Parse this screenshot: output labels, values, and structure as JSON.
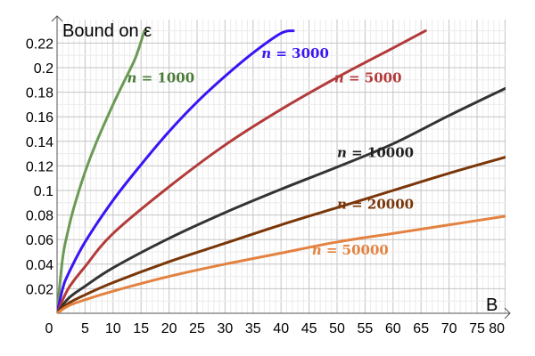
{
  "chart_data": {
    "type": "line",
    "title": "",
    "xlabel": "B",
    "ylabel": "Bound on ε",
    "xlim": [
      0,
      80
    ],
    "ylim": [
      0,
      0.23
    ],
    "grid": true,
    "x_ticks": [
      "0",
      "5",
      "10",
      "15",
      "20",
      "25",
      "30",
      "35",
      "40",
      "45",
      "50",
      "55",
      "60",
      "65",
      "70",
      "75",
      "80"
    ],
    "y_ticks": [
      "0.02",
      "0.04",
      "0.06",
      "0.08",
      "0.1",
      "0.12",
      "0.14",
      "0.16",
      "0.18",
      "0.2",
      "0.22"
    ],
    "series": [
      {
        "name": "n = 1000",
        "color": "#6b9a55",
        "x": [
          0,
          1,
          2,
          3,
          5,
          7,
          10,
          12,
          14,
          15.6
        ],
        "y": [
          0,
          0.045,
          0.068,
          0.086,
          0.115,
          0.139,
          0.17,
          0.189,
          0.208,
          0.23
        ]
      },
      {
        "name": "n = 3000",
        "color": "#3b14f5",
        "x": [
          0,
          1,
          2,
          5,
          10,
          15,
          20,
          25,
          30,
          35,
          40,
          42.2
        ],
        "y": [
          0,
          0.02,
          0.032,
          0.058,
          0.092,
          0.121,
          0.148,
          0.172,
          0.193,
          0.212,
          0.228,
          0.23
        ]
      },
      {
        "name": "n = 5000",
        "color": "#b33a3a",
        "x": [
          0,
          2,
          5,
          10,
          20,
          30,
          40,
          50,
          60,
          65.8
        ],
        "y": [
          0,
          0.02,
          0.038,
          0.065,
          0.103,
          0.137,
          0.166,
          0.192,
          0.216,
          0.23
        ]
      },
      {
        "name": "n = 10000",
        "color": "#333333",
        "x": [
          0,
          2,
          5,
          10,
          20,
          30,
          40,
          50,
          60,
          70,
          80
        ],
        "y": [
          0,
          0.012,
          0.022,
          0.037,
          0.061,
          0.082,
          0.101,
          0.119,
          0.138,
          0.161,
          0.183
        ]
      },
      {
        "name": "n = 20000",
        "color": "#7a3608",
        "x": [
          0,
          2,
          5,
          10,
          20,
          30,
          40,
          50,
          60,
          70,
          80
        ],
        "y": [
          0,
          0.008,
          0.015,
          0.025,
          0.042,
          0.057,
          0.072,
          0.086,
          0.1,
          0.114,
          0.127
        ]
      },
      {
        "name": "n = 50000",
        "color": "#e38240",
        "x": [
          0,
          2,
          5,
          10,
          20,
          30,
          40,
          50,
          60,
          70,
          80
        ],
        "y": [
          0,
          0.006,
          0.011,
          0.018,
          0.03,
          0.04,
          0.049,
          0.058,
          0.065,
          0.072,
          0.079
        ]
      }
    ],
    "annotations": [
      {
        "series": 0,
        "var": "n",
        "text": " = 1000",
        "x": 12.5,
        "y": 0.188,
        "color": "#4a7a38"
      },
      {
        "series": 1,
        "var": "n",
        "text": " = 3000",
        "x": 36.5,
        "y": 0.208,
        "color": "#3b14f5"
      },
      {
        "series": 2,
        "var": "n",
        "text": " = 5000",
        "x": 49.5,
        "y": 0.188,
        "color": "#b33a3a"
      },
      {
        "series": 3,
        "var": "n",
        "text": " = 10000",
        "x": 50,
        "y": 0.127,
        "color": "#222222"
      },
      {
        "series": 4,
        "var": "n",
        "text": " = 20000",
        "x": 50,
        "y": 0.085,
        "color": "#7a3608"
      },
      {
        "series": 5,
        "var": "n",
        "text": " = 50000",
        "x": 45.5,
        "y": 0.048,
        "color": "#e38240"
      }
    ]
  }
}
